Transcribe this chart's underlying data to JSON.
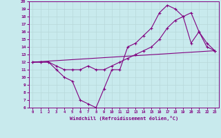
{
  "xlabel": "Windchill (Refroidissement éolien,°C)",
  "ylabel": "",
  "bg_color": "#c8eaed",
  "line_color": "#800080",
  "grid_color": "#b8d8da",
  "xlim": [
    -0.5,
    23.5
  ],
  "ylim": [
    6,
    20
  ],
  "xticks": [
    0,
    1,
    2,
    3,
    4,
    5,
    6,
    7,
    8,
    9,
    10,
    11,
    12,
    13,
    14,
    15,
    16,
    17,
    18,
    19,
    20,
    21,
    22,
    23
  ],
  "yticks": [
    6,
    7,
    8,
    9,
    10,
    11,
    12,
    13,
    14,
    15,
    16,
    17,
    18,
    19,
    20
  ],
  "line1_x": [
    0,
    1,
    2,
    3,
    4,
    5,
    6,
    7,
    8,
    9,
    10,
    11,
    12,
    13,
    14,
    15,
    16,
    17,
    18,
    19,
    20,
    21,
    22,
    23
  ],
  "line1_y": [
    12,
    12,
    12,
    11,
    10,
    9.5,
    7,
    6.5,
    6,
    8.5,
    11,
    11,
    14,
    14.5,
    15.5,
    16.5,
    18.5,
    19.5,
    19,
    18,
    14.5,
    16,
    14.5,
    13.5
  ],
  "line2_x": [
    0,
    1,
    2,
    3,
    4,
    5,
    6,
    7,
    8,
    9,
    10,
    11,
    12,
    13,
    14,
    15,
    16,
    17,
    18,
    19,
    20,
    21,
    22,
    23
  ],
  "line2_y": [
    12,
    12,
    12,
    11.5,
    11,
    11,
    11,
    11.5,
    11,
    11,
    11.5,
    12,
    12.5,
    13,
    13.5,
    14,
    15,
    16.5,
    17.5,
    18,
    18.5,
    16,
    14,
    13.5
  ],
  "line3_x": [
    0,
    23
  ],
  "line3_y": [
    12,
    13.5
  ]
}
